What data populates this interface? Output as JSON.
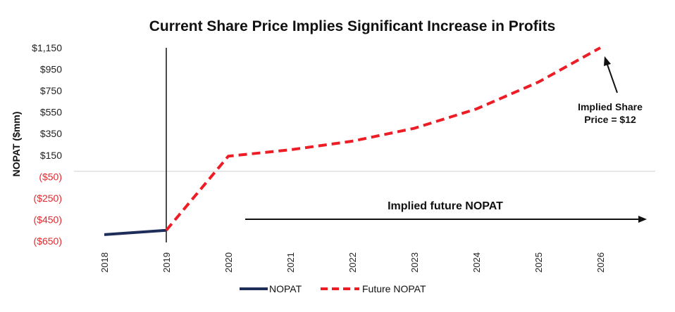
{
  "chart_data": {
    "type": "line",
    "title": "Current Share Price Implies Significant Increase in Profits",
    "ylabel": "NOPAT ($mm)",
    "xlabel": "",
    "categories": [
      "2018",
      "2019",
      "2020",
      "2021",
      "2022",
      "2023",
      "2024",
      "2025",
      "2026"
    ],
    "ylim": [
      -650,
      1150
    ],
    "yticks": [
      1150,
      950,
      750,
      550,
      350,
      150,
      -50,
      -250,
      -450,
      -650
    ],
    "ytick_labels": [
      "$1,150",
      "$950",
      "$750",
      "$550",
      "$350",
      "$150",
      "($50)",
      "($250)",
      "($450)",
      "($650)"
    ],
    "series": [
      {
        "name": "NOPAT",
        "color": "#1f2d5a",
        "style": "solid",
        "values": [
          -590,
          -550,
          null,
          null,
          null,
          null,
          null,
          null,
          null
        ]
      },
      {
        "name": "Future NOPAT",
        "color": "#ee1c25",
        "style": "dashed",
        "values": [
          null,
          -550,
          140,
          200,
          280,
          400,
          580,
          830,
          1150
        ]
      }
    ],
    "annotations": {
      "implied_share_line1": "Implied Share",
      "implied_share_line2": "Price = $12",
      "implied_future": "Implied future NOPAT"
    },
    "negative_tick_color": "#e8262b",
    "legend_position": "bottom"
  }
}
